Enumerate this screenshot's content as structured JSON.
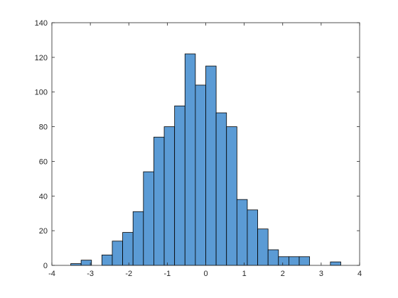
{
  "chart_data": {
    "type": "bar",
    "subtype": "histogram",
    "bin_width": 0.27,
    "bins": [
      {
        "left": -3.51,
        "right": -3.24,
        "count": 1
      },
      {
        "left": -3.24,
        "right": -2.97,
        "count": 3
      },
      {
        "left": -2.97,
        "right": -2.7,
        "count": 0
      },
      {
        "left": -2.7,
        "right": -2.43,
        "count": 6
      },
      {
        "left": -2.43,
        "right": -2.16,
        "count": 14
      },
      {
        "left": -2.16,
        "right": -1.89,
        "count": 19
      },
      {
        "left": -1.89,
        "right": -1.62,
        "count": 31
      },
      {
        "left": -1.62,
        "right": -1.35,
        "count": 54
      },
      {
        "left": -1.35,
        "right": -1.08,
        "count": 74
      },
      {
        "left": -1.08,
        "right": -0.81,
        "count": 80
      },
      {
        "left": -0.81,
        "right": -0.54,
        "count": 92
      },
      {
        "left": -0.54,
        "right": -0.27,
        "count": 122
      },
      {
        "left": -0.27,
        "right": 0.0,
        "count": 104
      },
      {
        "left": 0.0,
        "right": 0.27,
        "count": 115
      },
      {
        "left": 0.27,
        "right": 0.54,
        "count": 88
      },
      {
        "left": 0.54,
        "right": 0.81,
        "count": 80
      },
      {
        "left": 0.81,
        "right": 1.08,
        "count": 38
      },
      {
        "left": 1.08,
        "right": 1.35,
        "count": 32
      },
      {
        "left": 1.35,
        "right": 1.62,
        "count": 21
      },
      {
        "left": 1.62,
        "right": 1.89,
        "count": 9
      },
      {
        "left": 1.89,
        "right": 2.16,
        "count": 5
      },
      {
        "left": 2.16,
        "right": 2.43,
        "count": 5
      },
      {
        "left": 2.43,
        "right": 2.7,
        "count": 5
      },
      {
        "left": 2.7,
        "right": 2.97,
        "count": 0
      },
      {
        "left": 2.97,
        "right": 3.24,
        "count": 0
      },
      {
        "left": 3.24,
        "right": 3.51,
        "count": 2
      }
    ],
    "title": "",
    "xlabel": "",
    "ylabel": "",
    "xlim": [
      -4,
      4
    ],
    "ylim": [
      0,
      140
    ],
    "x_ticks": [
      -4,
      -3,
      -2,
      -1,
      0,
      1,
      2,
      3,
      4
    ],
    "y_ticks": [
      0,
      20,
      40,
      60,
      80,
      100,
      120,
      140
    ],
    "grid": false,
    "bar_color": "#5b9bd5",
    "edge_color": "#000000"
  }
}
